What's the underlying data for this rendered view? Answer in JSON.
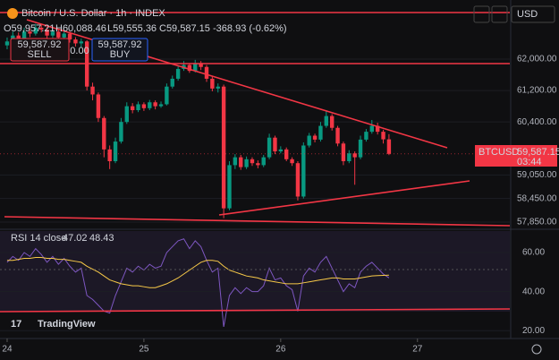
{
  "header": {
    "title": "Bitcoin / U.S. Dollar · 1h · INDEX",
    "ohlc": [
      "O59,957.21",
      "H60,088.46",
      "L59,555.36",
      "C59,587.15",
      "-368.93 (-0.62%)"
    ],
    "currency": "USD"
  },
  "trade": {
    "sell_price": "59,587.92",
    "sell": "SELL",
    "spread": "0.00",
    "buy_price": "59,587.92",
    "buy": "BUY"
  },
  "last_label": {
    "symbol": "BTCUSD",
    "price": "59,587.15",
    "countdown": "03:44"
  },
  "branding": "TradingView",
  "chart_data": [
    {
      "type": "candlestick",
      "up_color": "#089981",
      "down_color": "#f23645",
      "x": [
        0,
        1,
        2,
        3,
        4,
        5,
        6,
        7,
        8,
        9,
        10,
        11,
        12,
        13,
        14,
        15,
        16,
        17,
        18,
        19,
        20,
        21,
        22,
        23,
        24,
        25,
        26,
        27,
        28,
        29,
        30,
        31,
        32,
        33,
        34,
        35,
        36,
        37,
        38,
        39,
        40,
        41,
        42,
        43,
        44,
        45,
        46,
        47,
        48,
        49,
        50,
        51,
        52,
        53,
        54,
        55,
        56,
        57,
        58,
        59,
        60,
        61,
        62,
        63,
        64,
        65,
        66,
        67
      ],
      "open": [
        62350,
        62450,
        62600,
        62500,
        62700,
        62650,
        62800,
        62750,
        62600,
        62700,
        62550,
        62650,
        62500,
        62400,
        62450,
        61300,
        61100,
        60500,
        59700,
        59400,
        59900,
        60400,
        60800,
        60700,
        60850,
        60750,
        60900,
        60800,
        60850,
        61300,
        61500,
        61750,
        61850,
        61700,
        61900,
        61800,
        61500,
        61250,
        61300,
        58200,
        59300,
        59500,
        59250,
        59450,
        59350,
        59300,
        59500,
        60000,
        59650,
        59700,
        59450,
        59350,
        58500,
        59800,
        60050,
        59950,
        60300,
        60550,
        60250,
        59850,
        59400,
        59600,
        59500,
        59950,
        60150,
        60300,
        60150,
        59957.21
      ],
      "high": [
        62550,
        62700,
        62680,
        62800,
        62780,
        62900,
        62880,
        62820,
        62780,
        62760,
        62720,
        62700,
        62560,
        62520,
        62480,
        61400,
        61150,
        60550,
        59800,
        60000,
        60500,
        60900,
        60880,
        60920,
        60900,
        60960,
        60950,
        60920,
        61380,
        61580,
        61820,
        61950,
        61900,
        61980,
        61950,
        61850,
        61560,
        61380,
        61350,
        59400,
        59580,
        59560,
        59520,
        59500,
        59420,
        59560,
        60100,
        60050,
        59780,
        59750,
        59500,
        59400,
        59880,
        60120,
        60100,
        60400,
        60700,
        60600,
        60300,
        59900,
        59680,
        59650,
        60050,
        60220,
        60450,
        60380,
        60200,
        60088.46
      ],
      "low": [
        62250,
        62380,
        62420,
        62450,
        62560,
        62600,
        62680,
        62520,
        62540,
        62480,
        62500,
        62420,
        62320,
        62300,
        61200,
        60950,
        60400,
        59500,
        59200,
        59350,
        59850,
        60350,
        60620,
        60650,
        60680,
        60700,
        60720,
        60760,
        60820,
        61250,
        61450,
        61700,
        61650,
        61660,
        61720,
        61420,
        61180,
        61150,
        57950,
        58150,
        59200,
        59180,
        59200,
        59280,
        59220,
        59250,
        59450,
        59580,
        59600,
        59400,
        59280,
        58400,
        58450,
        59750,
        59880,
        59900,
        60250,
        60180,
        59780,
        59300,
        59350,
        58800,
        59450,
        59900,
        60100,
        60080,
        59850,
        59555.36
      ],
      "close": [
        62450,
        62600,
        62500,
        62700,
        62650,
        62800,
        62750,
        62600,
        62700,
        62550,
        62650,
        62500,
        62400,
        62450,
        61300,
        61100,
        60500,
        59700,
        59400,
        59900,
        60400,
        60800,
        60700,
        60850,
        60750,
        60900,
        60800,
        60850,
        61300,
        61500,
        61750,
        61850,
        61700,
        61900,
        61800,
        61500,
        61250,
        61300,
        58200,
        59300,
        59500,
        59250,
        59450,
        59350,
        59300,
        59500,
        60000,
        59650,
        59700,
        59450,
        59350,
        58500,
        59800,
        60050,
        59950,
        60300,
        60550,
        60250,
        59850,
        59400,
        59600,
        59500,
        59950,
        60150,
        60300,
        60150,
        59957.21,
        59587.15
      ],
      "xlim": [
        -1.25,
        88.2
      ],
      "ylim": [
        57690,
        63505
      ],
      "yticks": [
        {
          "value": 62000,
          "label": "62,000.00"
        },
        {
          "value": 61200,
          "label": "61,200.00"
        },
        {
          "value": 60400,
          "label": "60,400.00"
        },
        {
          "value": 59050,
          "label": "59,050.00"
        },
        {
          "value": 58450,
          "label": "58,450.00"
        },
        {
          "value": 57850,
          "label": "57,850.00"
        }
      ]
    },
    {
      "type": "line",
      "title": "RSI 14 close",
      "x": [
        0,
        1,
        2,
        3,
        4,
        5,
        6,
        7,
        8,
        9,
        10,
        11,
        12,
        13,
        14,
        15,
        16,
        17,
        18,
        19,
        20,
        21,
        22,
        23,
        24,
        25,
        26,
        27,
        28,
        29,
        30,
        31,
        32,
        33,
        34,
        35,
        36,
        37,
        38,
        39,
        40,
        41,
        42,
        43,
        44,
        45,
        46,
        47,
        48,
        49,
        50,
        51,
        52,
        53,
        54,
        55,
        56,
        57,
        58,
        59,
        60,
        61,
        62,
        63,
        64,
        65,
        66,
        67
      ],
      "series": [
        {
          "color": "#7e57c2",
          "values": [
            55,
            58,
            56,
            60,
            58,
            62,
            59,
            55,
            58,
            54,
            57,
            53,
            50,
            52,
            38,
            36,
            33,
            30,
            29,
            38,
            45,
            52,
            50,
            53,
            51,
            54,
            52,
            53,
            60,
            63,
            66,
            67,
            62,
            66,
            63,
            56,
            50,
            52,
            22,
            38,
            42,
            39,
            42,
            40,
            40,
            43,
            52,
            46,
            47,
            43,
            41,
            30,
            48,
            52,
            50,
            55,
            58,
            52,
            46,
            40,
            44,
            42,
            50,
            53,
            55,
            52,
            49,
            47.02
          ]
        },
        {
          "color": "#f7c948",
          "values": [
            56,
            56,
            56.5,
            57,
            57,
            57.5,
            57.5,
            57,
            57,
            56.5,
            56.5,
            56,
            55.5,
            55,
            53,
            51.5,
            50,
            48,
            46,
            45,
            44,
            43.5,
            43,
            43,
            42.5,
            42,
            42,
            43,
            44,
            45.5,
            47,
            49,
            51,
            53,
            55,
            56,
            56,
            55.5,
            53,
            51,
            50,
            49,
            48,
            47.5,
            47,
            46,
            45.5,
            45,
            44.5,
            44,
            44,
            44,
            44.5,
            45,
            45.5,
            46,
            46.5,
            47,
            47,
            46.5,
            46.5,
            46.5,
            47,
            47.5,
            48,
            48.2,
            48.3,
            48.43
          ]
        }
      ],
      "xlim": [
        -1.25,
        88.2
      ],
      "ylim": [
        16,
        71
      ],
      "yticks": [
        {
          "value": 60,
          "label": "60.00"
        },
        {
          "value": 40,
          "label": "40.00"
        },
        {
          "value": 20,
          "label": "20.00"
        }
      ],
      "xticks": [
        {
          "value": 0,
          "label": "24"
        },
        {
          "value": 24,
          "label": "25"
        },
        {
          "value": 48,
          "label": "26"
        },
        {
          "value": 72,
          "label": "27"
        }
      ]
    }
  ]
}
